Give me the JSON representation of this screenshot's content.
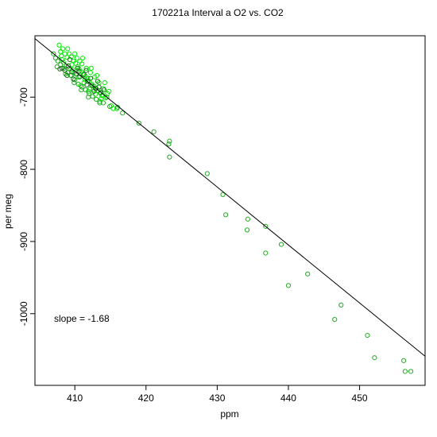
{
  "chart_data": {
    "type": "scatter",
    "title": "170221a   Interval a O2 vs. CO2",
    "xlabel": "ppm",
    "ylabel": "per meg",
    "xlim": [
      404.4,
      459.2
    ],
    "ylim": [
      -1099.3,
      -615
    ],
    "xticks": [
      410,
      420,
      430,
      440,
      450
    ],
    "yticks": [
      -700,
      -800,
      -900,
      -1000
    ],
    "grid": false,
    "annotation": "slope =  -1.68",
    "fit_line": {
      "slope": -1.68,
      "points": [
        [
          404.4,
          -619
        ],
        [
          459.2,
          -1059
        ]
      ]
    },
    "colors": {
      "bright": "#00ee00",
      "medium": "#22aa22",
      "dark": "#1a6a1a",
      "line": "#000000"
    },
    "series": [
      {
        "values": [
          [
            408.0,
            -637
          ],
          [
            408.3,
            -633
          ],
          [
            408.6,
            -640
          ],
          [
            408.9,
            -645
          ],
          [
            409.2,
            -640
          ],
          [
            409.5,
            -644
          ],
          [
            409.8,
            -650
          ],
          [
            410.1,
            -653
          ],
          [
            410.4,
            -658
          ],
          [
            410.6,
            -661
          ],
          [
            410.9,
            -665
          ],
          [
            411.2,
            -668
          ],
          [
            411.5,
            -671
          ],
          [
            411.8,
            -674
          ],
          [
            412.0,
            -678
          ],
          [
            412.4,
            -682
          ],
          [
            412.7,
            -685
          ],
          [
            413.0,
            -688
          ],
          [
            413.3,
            -691
          ],
          [
            413.6,
            -694
          ],
          [
            413.9,
            -697
          ],
          [
            414.3,
            -701
          ],
          [
            408.4,
            -652
          ],
          [
            408.8,
            -657
          ],
          [
            409.3,
            -660
          ],
          [
            409.6,
            -655
          ],
          [
            410.3,
            -646
          ],
          [
            410.7,
            -650
          ],
          [
            411.0,
            -654
          ],
          [
            411.6,
            -660
          ],
          [
            412.2,
            -666
          ],
          [
            412.8,
            -672
          ],
          [
            413.4,
            -680
          ],
          [
            414.0,
            -688
          ],
          [
            414.6,
            -695
          ],
          [
            407.8,
            -628
          ],
          [
            408.1,
            -643
          ],
          [
            409.0,
            -633
          ],
          [
            409.9,
            -666
          ],
          [
            410.5,
            -672
          ],
          [
            411.3,
            -680
          ],
          [
            412.1,
            -689
          ],
          [
            412.9,
            -696
          ],
          [
            413.7,
            -702
          ],
          [
            410.0,
            -640
          ],
          [
            411.1,
            -646
          ],
          [
            412.3,
            -660
          ],
          [
            413.1,
            -670
          ],
          [
            414.2,
            -680
          ],
          [
            409.4,
            -670
          ],
          [
            410.8,
            -684
          ],
          [
            411.9,
            -692
          ],
          [
            413.5,
            -706
          ],
          [
            415.1,
            -712
          ],
          [
            415.4,
            -716
          ],
          [
            415.9,
            -716
          ],
          [
            408.2,
            -648
          ],
          [
            409.7,
            -662
          ],
          [
            411.4,
            -676
          ],
          [
            412.6,
            -690
          ],
          [
            413.8,
            -698
          ],
          [
            414.8,
            -692
          ]
        ]
      },
      {
        "values": [
          [
            407.0,
            -640
          ],
          [
            407.3,
            -646
          ],
          [
            407.6,
            -650
          ],
          [
            408.0,
            -655
          ],
          [
            408.5,
            -660
          ],
          [
            409.0,
            -666
          ],
          [
            409.5,
            -670
          ],
          [
            410.0,
            -676
          ],
          [
            410.5,
            -682
          ],
          [
            411.0,
            -686
          ],
          [
            411.5,
            -690
          ],
          [
            412.0,
            -695
          ],
          [
            412.5,
            -699
          ],
          [
            413.0,
            -703
          ],
          [
            413.5,
            -708
          ],
          [
            407.5,
            -658
          ],
          [
            408.7,
            -668
          ],
          [
            409.9,
            -680
          ],
          [
            410.9,
            -690
          ],
          [
            411.9,
            -700
          ],
          [
            414.0,
            -708
          ],
          [
            414.5,
            -700
          ],
          [
            414.9,
            -713
          ],
          [
            416.0,
            -714
          ],
          [
            416.7,
            -722
          ],
          [
            419.0,
            -736
          ],
          [
            421.1,
            -748
          ],
          [
            423.3,
            -783
          ],
          [
            428.6,
            -806
          ],
          [
            430.8,
            -835
          ],
          [
            431.2,
            -863
          ],
          [
            434.3,
            -869
          ],
          [
            434.2,
            -884
          ],
          [
            436.8,
            -879
          ],
          [
            436.8,
            -916
          ],
          [
            439.0,
            -904
          ],
          [
            440.0,
            -961
          ],
          [
            442.7,
            -945
          ],
          [
            446.5,
            -1008
          ],
          [
            447.4,
            -988
          ],
          [
            451.1,
            -1030
          ],
          [
            452.1,
            -1061
          ],
          [
            456.2,
            -1065
          ],
          [
            456.4,
            -1080
          ],
          [
            457.2,
            -1080
          ],
          [
            423.3,
            -761
          ],
          [
            423.2,
            -765
          ]
        ]
      },
      {
        "values": [
          [
            408.2,
            -660
          ],
          [
            408.6,
            -663
          ],
          [
            409.1,
            -657
          ],
          [
            409.6,
            -665
          ],
          [
            410.2,
            -668
          ],
          [
            410.7,
            -672
          ],
          [
            411.3,
            -669
          ],
          [
            411.8,
            -678
          ],
          [
            412.4,
            -684
          ],
          [
            412.9,
            -688
          ],
          [
            413.4,
            -686
          ],
          [
            407.9,
            -661
          ],
          [
            408.9,
            -670
          ],
          [
            409.8,
            -675
          ],
          [
            410.6,
            -664
          ],
          [
            411.7,
            -683
          ],
          [
            412.7,
            -692
          ],
          [
            413.6,
            -694
          ],
          [
            409.3,
            -648
          ],
          [
            410.4,
            -660
          ],
          [
            411.6,
            -663
          ],
          [
            412.2,
            -674
          ],
          [
            413.2,
            -678
          ],
          [
            414.1,
            -690
          ]
        ]
      }
    ]
  }
}
